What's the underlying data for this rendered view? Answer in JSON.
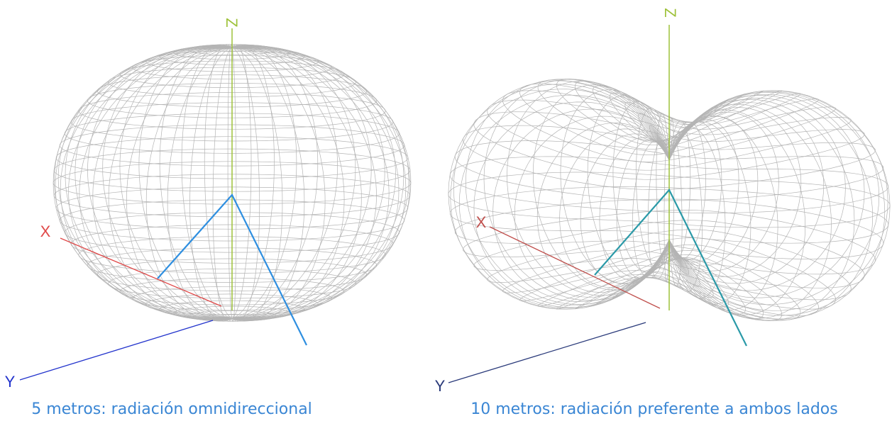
{
  "panels": [
    {
      "axis_labels": {
        "x": "X",
        "y": "Y",
        "z": "Z"
      },
      "caption": "5 metros: radiación omnidireccional"
    },
    {
      "axis_labels": {
        "x": "X",
        "y": "Y",
        "z": "Z"
      },
      "caption": "10 metros: radiación preferente a ambos lados"
    }
  ]
}
